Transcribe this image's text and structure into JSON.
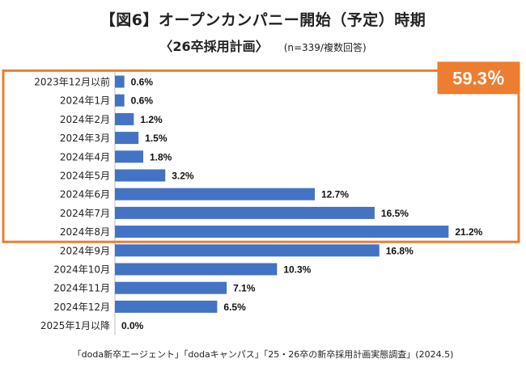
{
  "chart_data": {
    "type": "bar",
    "orientation": "horizontal",
    "title": "【図6】オープンカンパニー開始（予定）時期",
    "subtitle": "〈26卒採用計画〉",
    "sample_note": "(n=339/複数回答)",
    "categories": [
      "2023年12月以前",
      "2024年1月",
      "2024年2月",
      "2024年3月",
      "2024年4月",
      "2024年5月",
      "2024年6月",
      "2024年7月",
      "2024年8月",
      "2024年9月",
      "2024年10月",
      "2024年11月",
      "2024年12月",
      "2025年1月以降"
    ],
    "values": [
      0.6,
      0.6,
      1.2,
      1.5,
      1.8,
      3.2,
      12.7,
      16.5,
      21.2,
      16.8,
      10.3,
      7.1,
      6.5,
      0.0
    ],
    "value_labels": [
      "0.6%",
      "0.6%",
      "1.2%",
      "1.5%",
      "1.8%",
      "3.2%",
      "12.7%",
      "16.5%",
      "21.2%",
      "16.8%",
      "10.3%",
      "7.1%",
      "6.5%",
      "0.0%"
    ],
    "bar_color": "#4472C4",
    "highlight": {
      "categories_from": "2023年12月以前",
      "categories_to": "2024年8月",
      "label": "59.3％",
      "color": "#ED7D31"
    },
    "xlim": [
      0,
      23
    ],
    "grid": false,
    "legend": "none"
  },
  "footer": "「doda新卒エージェント」「dodaキャンパス」「25・26卒の新卒採用計画実態調査」(2024.5)"
}
